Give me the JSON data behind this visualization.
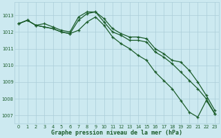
{
  "title": "Graphe pression niveau de la mer (hPa)",
  "bg_color": "#cce9f0",
  "grid_color": "#aacdd8",
  "line_color": "#1a5c2a",
  "xlim_min": -0.5,
  "xlim_max": 23.5,
  "ylim_min": 1006.5,
  "ylim_max": 1013.8,
  "yticks": [
    1007,
    1008,
    1009,
    1010,
    1011,
    1012,
    1013
  ],
  "xticks": [
    0,
    1,
    2,
    3,
    4,
    5,
    6,
    7,
    8,
    9,
    10,
    11,
    12,
    13,
    14,
    15,
    16,
    17,
    18,
    19,
    20,
    21,
    22,
    23
  ],
  "series1": [
    1012.5,
    1012.7,
    1012.4,
    1012.5,
    1012.3,
    1012.1,
    1012.0,
    1012.9,
    1013.2,
    1013.2,
    1012.8,
    1012.2,
    1011.9,
    1011.7,
    1011.7,
    1011.6,
    1011.0,
    1010.7,
    1010.3,
    1010.2,
    1009.7,
    1009.0,
    1008.2,
    1007.3
  ],
  "series2": [
    1012.5,
    1012.7,
    1012.4,
    1012.3,
    1012.2,
    1012.0,
    1011.9,
    1012.7,
    1013.1,
    1013.2,
    1012.6,
    1012.0,
    1011.8,
    1011.5,
    1011.5,
    1011.4,
    1010.8,
    1010.5,
    1010.1,
    1009.6,
    1009.1,
    1008.6,
    1008.0,
    1007.1
  ],
  "series3": [
    1012.5,
    1012.7,
    1012.4,
    1012.3,
    1012.2,
    1012.0,
    1011.9,
    1012.1,
    1012.6,
    1012.9,
    1012.4,
    1011.7,
    1011.3,
    1011.0,
    1010.6,
    1010.3,
    1009.6,
    1009.1,
    1008.6,
    1007.9,
    1007.2,
    1006.9,
    1007.9,
    1007.1
  ]
}
